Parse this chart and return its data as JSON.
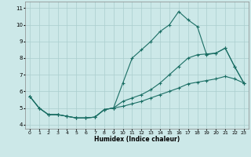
{
  "xlabel": "Humidex (Indice chaleur)",
  "bg_color": "#cce8e8",
  "grid_color": "#aacece",
  "line_color": "#1a6e64",
  "xlim": [
    -0.5,
    23.5
  ],
  "ylim": [
    3.75,
    11.4
  ],
  "xticks": [
    0,
    1,
    2,
    3,
    4,
    5,
    6,
    7,
    8,
    9,
    10,
    11,
    12,
    13,
    14,
    15,
    16,
    17,
    18,
    19,
    20,
    21,
    22,
    23
  ],
  "yticks": [
    4,
    5,
    6,
    7,
    8,
    9,
    10,
    11
  ],
  "line1_x": [
    0,
    1,
    2,
    3,
    4,
    5,
    6,
    7,
    8,
    9,
    10,
    11,
    12,
    13,
    14,
    15,
    16,
    17,
    18,
    19,
    20,
    21,
    22,
    23
  ],
  "line1_y": [
    5.7,
    5.0,
    4.6,
    4.6,
    4.5,
    4.4,
    4.4,
    4.45,
    4.9,
    5.0,
    6.5,
    8.0,
    8.5,
    9.0,
    9.6,
    10.0,
    10.8,
    10.3,
    9.9,
    8.2,
    8.3,
    8.6,
    7.5,
    6.5
  ],
  "line2_x": [
    0,
    1,
    2,
    3,
    4,
    5,
    6,
    7,
    8,
    9,
    10,
    11,
    12,
    13,
    14,
    15,
    16,
    17,
    18,
    19,
    20,
    21,
    22,
    23
  ],
  "line2_y": [
    5.7,
    5.0,
    4.6,
    4.6,
    4.5,
    4.4,
    4.4,
    4.45,
    4.9,
    5.0,
    5.4,
    5.6,
    5.8,
    6.1,
    6.5,
    7.0,
    7.5,
    8.0,
    8.2,
    8.25,
    8.3,
    8.6,
    7.5,
    6.5
  ],
  "line3_x": [
    0,
    1,
    2,
    3,
    4,
    5,
    6,
    7,
    8,
    9,
    10,
    11,
    12,
    13,
    14,
    15,
    16,
    17,
    18,
    19,
    20,
    21,
    22,
    23
  ],
  "line3_y": [
    5.7,
    5.0,
    4.6,
    4.6,
    4.5,
    4.4,
    4.4,
    4.45,
    4.9,
    5.0,
    5.1,
    5.25,
    5.4,
    5.6,
    5.8,
    6.0,
    6.2,
    6.45,
    6.55,
    6.65,
    6.75,
    6.9,
    6.75,
    6.5
  ]
}
